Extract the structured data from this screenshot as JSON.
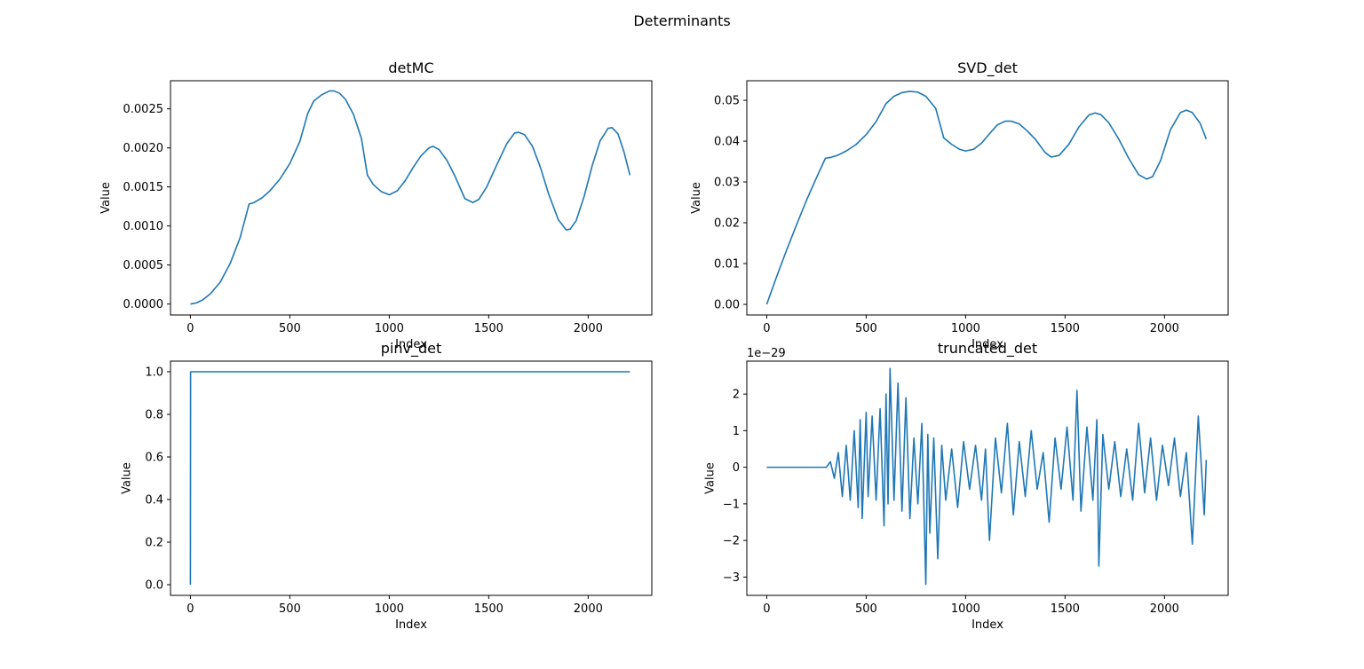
{
  "figure": {
    "title": "Determinants",
    "line_color": "#1f77b4"
  },
  "chart_data": [
    {
      "type": "line",
      "title": "detMC",
      "xlabel": "Index",
      "ylabel": "Value",
      "xlim": [
        -100,
        2320
      ],
      "ylim": [
        -0.00014,
        0.00286
      ],
      "xticks": [
        0,
        500,
        1000,
        1500,
        2000
      ],
      "xtick_labels": [
        "0",
        "500",
        "1000",
        "1500",
        "2000"
      ],
      "yticks": [
        0,
        0.0005,
        0.001,
        0.0015,
        0.002,
        0.0025
      ],
      "ytick_labels": [
        "0.0000",
        "0.0005",
        "0.0010",
        "0.0015",
        "0.0020",
        "0.0025"
      ],
      "offset_text": "",
      "grid": false,
      "series": [
        {
          "x": [
            0,
            30,
            60,
            100,
            150,
            200,
            250,
            295,
            320,
            360,
            400,
            450,
            500,
            550,
            590,
            620,
            660,
            700,
            720,
            750,
            780,
            820,
            860,
            890,
            920,
            960,
            1000,
            1040,
            1080,
            1120,
            1160,
            1200,
            1220,
            1250,
            1290,
            1330,
            1380,
            1420,
            1450,
            1490,
            1540,
            1590,
            1630,
            1650,
            1680,
            1720,
            1760,
            1800,
            1850,
            1890,
            1910,
            1940,
            1980,
            2020,
            2060,
            2100,
            2120,
            2150,
            2180,
            2210
          ],
          "y": [
            0,
            1.5e-05,
            5e-05,
            0.00013,
            0.00028,
            0.00052,
            0.00085,
            0.00128,
            0.0013,
            0.00136,
            0.00145,
            0.0016,
            0.0018,
            0.00208,
            0.00244,
            0.0026,
            0.00268,
            0.00273,
            0.00273,
            0.0027,
            0.00262,
            0.00243,
            0.00212,
            0.00165,
            0.00153,
            0.00144,
            0.0014,
            0.00145,
            0.00158,
            0.00175,
            0.0019,
            0.002,
            0.00202,
            0.00198,
            0.00184,
            0.00164,
            0.00135,
            0.0013,
            0.00134,
            0.0015,
            0.00178,
            0.00205,
            0.00219,
            0.0022,
            0.00217,
            0.00202,
            0.00175,
            0.00142,
            0.00108,
            0.00095,
            0.00096,
            0.00107,
            0.00138,
            0.00177,
            0.00209,
            0.00225,
            0.00226,
            0.00218,
            0.00195,
            0.00165
          ]
        }
      ]
    },
    {
      "type": "line",
      "title": "SVD_det",
      "xlabel": "Index",
      "ylabel": "Value",
      "xlim": [
        -100,
        2320
      ],
      "ylim": [
        -0.0026,
        0.0548
      ],
      "xticks": [
        0,
        500,
        1000,
        1500,
        2000
      ],
      "xtick_labels": [
        "0",
        "500",
        "1000",
        "1500",
        "2000"
      ],
      "yticks": [
        0,
        0.01,
        0.02,
        0.03,
        0.04,
        0.05
      ],
      "ytick_labels": [
        "0.00",
        "0.01",
        "0.02",
        "0.03",
        "0.04",
        "0.05"
      ],
      "offset_text": "",
      "grid": false,
      "series": [
        {
          "x": [
            0,
            50,
            100,
            150,
            200,
            250,
            295,
            320,
            360,
            400,
            450,
            500,
            550,
            600,
            640,
            680,
            720,
            760,
            800,
            850,
            890,
            930,
            970,
            1000,
            1040,
            1080,
            1120,
            1160,
            1200,
            1230,
            1270,
            1310,
            1350,
            1400,
            1430,
            1470,
            1520,
            1570,
            1620,
            1650,
            1680,
            1720,
            1770,
            1820,
            1870,
            1910,
            1940,
            1980,
            2030,
            2080,
            2110,
            2140,
            2180,
            2210
          ],
          "y": [
            0,
            0.0068,
            0.0133,
            0.0195,
            0.0255,
            0.031,
            0.0358,
            0.036,
            0.0366,
            0.0376,
            0.0392,
            0.0416,
            0.0448,
            0.0492,
            0.051,
            0.0519,
            0.0522,
            0.052,
            0.051,
            0.048,
            0.0408,
            0.0392,
            0.038,
            0.0376,
            0.038,
            0.0395,
            0.0418,
            0.044,
            0.0449,
            0.0449,
            0.0442,
            0.0425,
            0.0405,
            0.0372,
            0.0361,
            0.0365,
            0.0393,
            0.0435,
            0.0464,
            0.0469,
            0.0465,
            0.0445,
            0.0405,
            0.0358,
            0.0318,
            0.0307,
            0.0313,
            0.0352,
            0.0428,
            0.047,
            0.0476,
            0.047,
            0.0443,
            0.0405
          ]
        }
      ]
    },
    {
      "type": "line",
      "title": "pinv_det",
      "xlabel": "Index",
      "ylabel": "Value",
      "xlim": [
        -100,
        2320
      ],
      "ylim": [
        -0.05,
        1.05
      ],
      "xticks": [
        0,
        500,
        1000,
        1500,
        2000
      ],
      "xtick_labels": [
        "0",
        "500",
        "1000",
        "1500",
        "2000"
      ],
      "yticks": [
        0,
        0.2,
        0.4,
        0.6,
        0.8,
        1.0
      ],
      "ytick_labels": [
        "0.0",
        "0.2",
        "0.4",
        "0.6",
        "0.8",
        "1.0"
      ],
      "offset_text": "",
      "grid": false,
      "series": [
        {
          "x": [
            0,
            1,
            2210
          ],
          "y": [
            0,
            1,
            1
          ]
        }
      ]
    },
    {
      "type": "line",
      "title": "truncated_det",
      "xlabel": "Index",
      "ylabel": "Value",
      "xlim": [
        -100,
        2320
      ],
      "ylim": [
        -3.5,
        2.9
      ],
      "xticks": [
        0,
        500,
        1000,
        1500,
        2000
      ],
      "xtick_labels": [
        "0",
        "500",
        "1000",
        "1500",
        "2000"
      ],
      "yticks": [
        -3,
        -2,
        -1,
        0,
        1,
        2
      ],
      "ytick_labels": [
        "−3",
        "−2",
        "−1",
        "0",
        "1",
        "2"
      ],
      "offset_text": "1e−29",
      "grid": false,
      "series": [
        {
          "x": [
            0,
            300,
            320,
            340,
            360,
            380,
            400,
            420,
            440,
            460,
            470,
            480,
            500,
            510,
            530,
            550,
            570,
            590,
            600,
            610,
            620,
            640,
            660,
            680,
            700,
            720,
            740,
            760,
            780,
            800,
            810,
            820,
            840,
            860,
            880,
            900,
            930,
            960,
            990,
            1020,
            1050,
            1080,
            1100,
            1120,
            1150,
            1180,
            1210,
            1240,
            1270,
            1300,
            1330,
            1360,
            1390,
            1420,
            1450,
            1480,
            1510,
            1540,
            1560,
            1580,
            1610,
            1640,
            1660,
            1670,
            1690,
            1720,
            1750,
            1780,
            1810,
            1840,
            1870,
            1900,
            1930,
            1960,
            1990,
            2020,
            2050,
            2080,
            2110,
            2140,
            2170,
            2200,
            2210
          ],
          "y": [
            0,
            0,
            0.15,
            -0.3,
            0.4,
            -0.8,
            0.6,
            -0.9,
            1.0,
            -1.1,
            1.3,
            -1.4,
            1.5,
            -0.8,
            1.4,
            -0.9,
            1.6,
            -1.6,
            2.0,
            -1.0,
            2.7,
            -0.9,
            2.3,
            -1.2,
            1.9,
            -1.4,
            0.8,
            -1.0,
            1.2,
            -3.2,
            0.9,
            -1.8,
            0.8,
            -2.5,
            0.6,
            -0.9,
            0.5,
            -1.1,
            0.7,
            -0.6,
            0.6,
            -0.9,
            0.5,
            -2.0,
            0.8,
            -0.7,
            1.2,
            -1.3,
            0.7,
            -0.8,
            1.0,
            -0.6,
            0.4,
            -1.5,
            0.8,
            -0.6,
            1.1,
            -0.9,
            2.1,
            -1.2,
            1.1,
            -0.9,
            1.3,
            -2.7,
            0.9,
            -0.6,
            0.7,
            -0.8,
            0.5,
            -0.9,
            1.2,
            -0.7,
            0.8,
            -0.9,
            0.6,
            -0.5,
            0.8,
            -0.8,
            0.4,
            -2.1,
            1.4,
            -1.3,
            0.2
          ]
        }
      ]
    }
  ]
}
